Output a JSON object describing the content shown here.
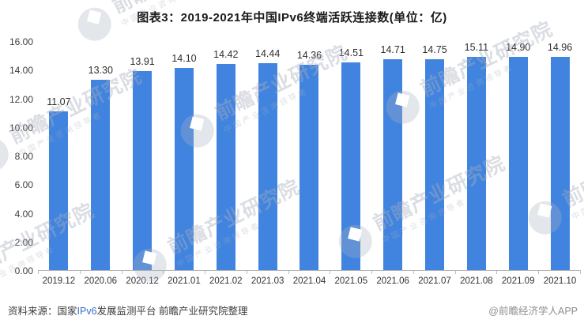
{
  "page": {
    "title": "图表3：2019-2021年中国IPv6终端活跃连接数(单位：亿)",
    "footer": {
      "source_prefix": "资料来源：国家",
      "source_link": "IPv6",
      "source_suffix": "发展监测平台 前瞻产业研究院整理",
      "brand": "@前瞻经济学人APP"
    },
    "watermark": {
      "text_large": "前瞻产业研究院",
      "text_small": "中国产业咨询领导者"
    }
  },
  "chart_data": {
    "type": "bar",
    "title": "图表3：2019-2021年中国IPv6终端活跃连接数(单位：亿)",
    "unit": "亿",
    "categories": [
      "2019.12",
      "2020.06",
      "2020.12",
      "2021.01",
      "2021.02",
      "2021.03",
      "2021.04",
      "2021.05",
      "2021.06",
      "2021.07",
      "2021.08",
      "2021.09",
      "2021.10"
    ],
    "values": [
      11.07,
      13.3,
      13.91,
      14.1,
      14.42,
      14.44,
      14.36,
      14.51,
      14.71,
      14.75,
      15.11,
      14.9,
      14.96
    ],
    "value_label_decimals": 2,
    "xlabel": "",
    "ylabel": "",
    "ylim": [
      0,
      16
    ],
    "y_tick_step": 2,
    "y_tick_labels": [
      "16.00",
      "14.00",
      "12.00",
      "10.00",
      "8.00",
      "6.00",
      "4.00",
      "2.00",
      "0.00"
    ],
    "grid": false,
    "legend": false,
    "bar_color": "#4184df",
    "value_labels_shown": true
  }
}
